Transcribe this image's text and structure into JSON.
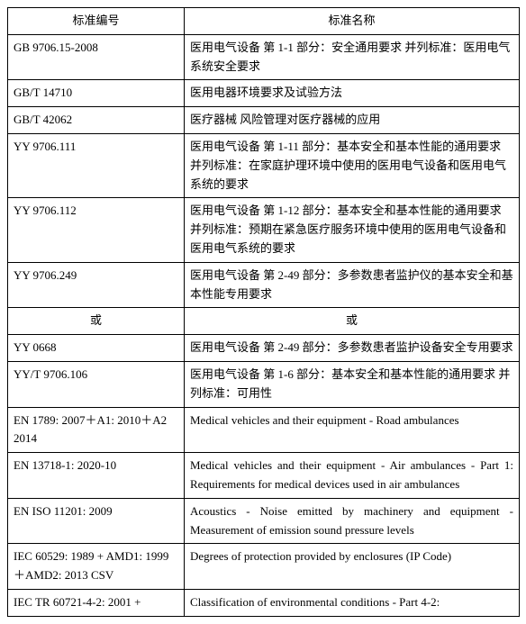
{
  "table": {
    "header": {
      "col1": "标准编号",
      "col2": "标准名称"
    },
    "rows": [
      {
        "col1": "GB 9706.15-2008",
        "col2": "医用电气设备 第 1-1 部分：安全通用要求  并列标准：医用电气系统安全要求",
        "col1_class": "",
        "col2_class": ""
      },
      {
        "col1": "GB/T 14710",
        "col2": "医用电器环境要求及试验方法",
        "col1_class": "",
        "col2_class": ""
      },
      {
        "col1": "GB/T 42062",
        "col2": "医疗器械 风险管理对医疗器械的应用",
        "col1_class": "",
        "col2_class": ""
      },
      {
        "col1": "YY 9706.111",
        "col2": "医用电气设备 第 1-11 部分：基本安全和基本性能的通用要求 并列标准：在家庭护理环境中使用的医用电气设备和医用电气系统的要求",
        "col1_class": "",
        "col2_class": ""
      },
      {
        "col1": "YY 9706.112",
        "col2": "医用电气设备 第 1-12 部分：基本安全和基本性能的通用要求 并列标准：预期在紧急医疗服务环境中使用的医用电气设备和医用电气系统的要求",
        "col1_class": "",
        "col2_class": ""
      },
      {
        "col1": "YY 9706.249",
        "col2": "医用电气设备  第 2-49 部分：多参数患者监护仪的基本安全和基本性能专用要求",
        "col1_class": "",
        "col2_class": ""
      },
      {
        "col1": "或",
        "col2": "或",
        "col1_class": "or-cell",
        "col2_class": "or-cell"
      },
      {
        "col1": "YY 0668",
        "col2": "医用电气设备  第 2-49 部分：多参数患者监护设备安全专用要求",
        "col1_class": "",
        "col2_class": ""
      },
      {
        "col1": "YY/T 9706.106",
        "col2": "医用电气设备 第 1-6 部分：基本安全和基本性能的通用要求 并列标准：可用性",
        "col1_class": "",
        "col2_class": ""
      },
      {
        "col1": "EN 1789: 2007＋A1: 2010＋A2 2014",
        "col2": "Medical vehicles and their equipment - Road ambulances",
        "col1_class": "",
        "col2_class": "justify"
      },
      {
        "col1": "EN 13718-1: 2020-10",
        "col2": "Medical vehicles and their equipment - Air ambulances - Part 1: Requirements for medical devices used in air ambulances",
        "col1_class": "",
        "col2_class": "justify"
      },
      {
        "col1": "EN ISO 11201: 2009",
        "col2": "Acoustics - Noise emitted by machinery and equipment - Measurement of emission sound pressure levels",
        "col1_class": "",
        "col2_class": "justify"
      },
      {
        "col1": "IEC 60529: 1989 + AMD1: 1999＋AMD2: 2013 CSV",
        "col2": "Degrees of protection provided by enclosures (IP Code)",
        "col1_class": "",
        "col2_class": "justify"
      },
      {
        "col1": "IEC TR 60721-4-2: 2001 +",
        "col2": "Classification of environmental conditions - Part 4-2:",
        "col1_class": "",
        "col2_class": "justify"
      }
    ]
  }
}
